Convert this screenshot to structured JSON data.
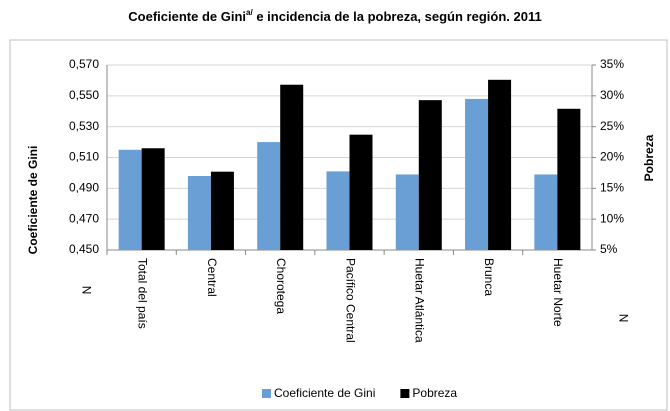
{
  "chart_data": {
    "type": "bar",
    "title": "Coeficiente de Gini",
    "title_superscript": "a/",
    "title_rest": " e incidencia de la pobreza, según región. 2011",
    "y_label": "Coeficiente de Gini",
    "y2_label": "Pobreza",
    "left_note": "N",
    "right_note": "N",
    "categories": [
      "Total del país",
      "Central",
      "Chorotega",
      "Pacífico Central",
      "Huetar Atlántica",
      "Brunca",
      "Huetar Norte"
    ],
    "series": [
      {
        "name": "Coeficiente de Gini",
        "color": "#6a9fd6",
        "values": [
          0.515,
          0.498,
          0.52,
          0.501,
          0.499,
          0.548,
          0.499
        ]
      },
      {
        "name": "Pobreza",
        "color": "#000000",
        "axis": "y2",
        "values": [
          21.5,
          17.7,
          31.8,
          23.7,
          29.3,
          32.6,
          27.9
        ]
      }
    ],
    "ylim": [
      0.45,
      0.57
    ],
    "yticks": [
      {
        "value": 0.45,
        "label": "0,450"
      },
      {
        "value": 0.47,
        "label": "0,470"
      },
      {
        "value": 0.49,
        "label": "0,490"
      },
      {
        "value": 0.51,
        "label": "0,510"
      },
      {
        "value": 0.53,
        "label": "0,530"
      },
      {
        "value": 0.55,
        "label": "0,550"
      },
      {
        "value": 0.57,
        "label": "0,570"
      }
    ],
    "y2lim": [
      5,
      35
    ],
    "y2ticks": [
      {
        "value": 5,
        "label": "5%"
      },
      {
        "value": 10,
        "label": "10%"
      },
      {
        "value": 15,
        "label": "15%"
      },
      {
        "value": 20,
        "label": "20%"
      },
      {
        "value": 25,
        "label": "25%"
      },
      {
        "value": 30,
        "label": "30%"
      },
      {
        "value": 35,
        "label": "35%"
      }
    ],
    "grid": true,
    "legend": "bottom"
  }
}
